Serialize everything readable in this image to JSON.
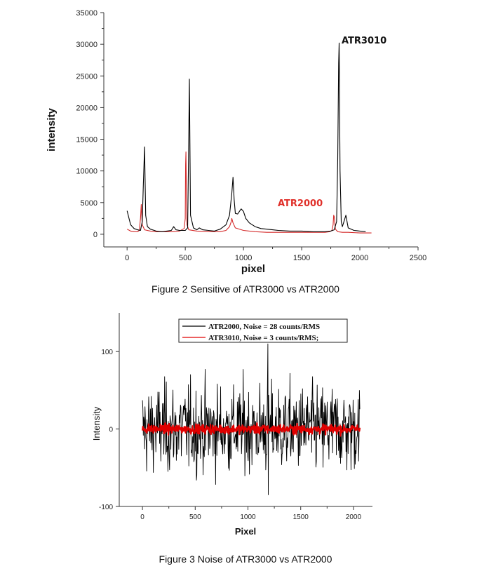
{
  "chart_data": [
    {
      "type": "line",
      "title": "",
      "xlabel": "pixel",
      "ylabel": "intensity",
      "xlim": [
        -200,
        2500
      ],
      "ylim": [
        -2000,
        35000
      ],
      "xticks": [
        0,
        500,
        1000,
        1500,
        2000,
        2500
      ],
      "yticks": [
        0,
        5000,
        10000,
        15000,
        20000,
        25000,
        30000,
        35000
      ],
      "annotations": [
        {
          "text": "ATR3010",
          "color": "#111111"
        },
        {
          "text": "ATR2000",
          "color": "#e0302a"
        }
      ],
      "series": [
        {
          "name": "ATR3010",
          "color": "#000000",
          "x": [
            0,
            30,
            60,
            90,
            115,
            130,
            140,
            150,
            160,
            175,
            200,
            250,
            300,
            380,
            400,
            420,
            450,
            500,
            520,
            528,
            535,
            545,
            570,
            600,
            620,
            650,
            700,
            750,
            800,
            850,
            880,
            900,
            910,
            920,
            930,
            950,
            980,
            1000,
            1020,
            1050,
            1100,
            1150,
            1200,
            1250,
            1300,
            1400,
            1500,
            1600,
            1700,
            1750,
            1780,
            1800,
            1810,
            1818,
            1822,
            1830,
            1840,
            1850,
            1860,
            1880,
            1900,
            1950,
            2000,
            2050
          ],
          "y": [
            3700,
            1500,
            900,
            700,
            600,
            2000,
            8000,
            13800,
            3000,
            1200,
            800,
            500,
            400,
            600,
            1200,
            700,
            600,
            600,
            1000,
            12000,
            24500,
            3000,
            1000,
            700,
            1000,
            700,
            600,
            500,
            800,
            1500,
            3000,
            6500,
            9000,
            5500,
            3300,
            3200,
            4000,
            3600,
            2500,
            1800,
            1200,
            900,
            800,
            700,
            600,
            500,
            500,
            400,
            400,
            500,
            700,
            2000,
            12000,
            27000,
            30200,
            10000,
            2000,
            1200,
            1800,
            3000,
            1000,
            600,
            500,
            400
          ]
        },
        {
          "name": "ATR2000",
          "color": "#d42a2a",
          "x": [
            0,
            30,
            60,
            90,
            105,
            115,
            122,
            130,
            150,
            200,
            250,
            300,
            400,
            450,
            490,
            500,
            503,
            506,
            510,
            515,
            530,
            600,
            700,
            800,
            850,
            880,
            895,
            900,
            910,
            930,
            1000,
            1100,
            1200,
            1300,
            1400,
            1500,
            1600,
            1700,
            1740,
            1760,
            1770,
            1775,
            1780,
            1790,
            1810,
            1850,
            1900,
            2000,
            2100
          ],
          "y": [
            800,
            500,
            400,
            400,
            600,
            2500,
            4700,
            1500,
            700,
            500,
            400,
            400,
            400,
            500,
            900,
            2500,
            11000,
            13000,
            6000,
            1500,
            700,
            500,
            400,
            400,
            600,
            1200,
            2000,
            2500,
            1800,
            1000,
            600,
            400,
            300,
            300,
            300,
            300,
            300,
            300,
            400,
            600,
            1500,
            3000,
            2800,
            800,
            400,
            300,
            300,
            200,
            200
          ]
        }
      ]
    },
    {
      "type": "line",
      "title": "",
      "xlabel": "Pixel",
      "ylabel": "Intensity",
      "xlim": [
        -220,
        2180
      ],
      "ylim": [
        -100,
        150
      ],
      "xticks": [
        0,
        500,
        1000,
        1500,
        2000
      ],
      "yticks": [
        -100,
        0,
        100
      ],
      "legend": "top-center",
      "series": [
        {
          "name": "ATR2000, Noise = 28 counts/RMS",
          "color": "#000000",
          "x_start": 0,
          "x_end": 2060,
          "rms": 28,
          "min": -85,
          "max": 110
        },
        {
          "name": "ATR3010, Noise = 3 counts/RMS;",
          "color": "#e00000",
          "x_start": 0,
          "x_end": 2060,
          "rms": 3,
          "min": -9,
          "max": 9
        }
      ]
    }
  ],
  "captions": {
    "figure2": "Figure 2 Sensitive of ATR3000 vs ATR2000",
    "figure3": "Figure 3 Noise of ATR3000 vs ATR2000"
  }
}
